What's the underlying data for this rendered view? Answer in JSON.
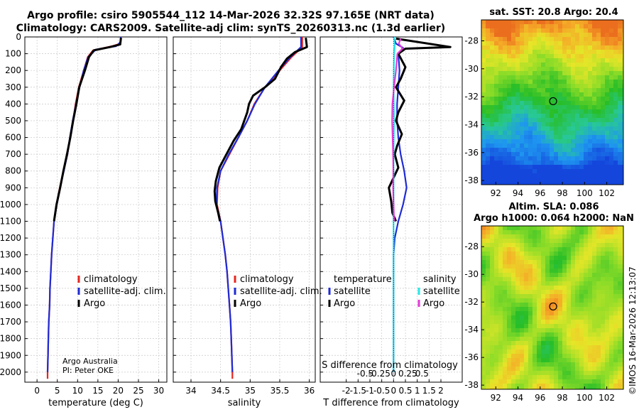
{
  "header": {
    "line1": "Argo profile: csiro 5905544_112 14-Mar-2026 32.32S 97.165E (NRT data)",
    "line2": "Climatology: CARS2009. Satellite-adj clim: synTS_20260313.nc (1.3d earlier)"
  },
  "credit": "©IMOS 16-Mar-2026 12:13:07",
  "colors": {
    "red": "#e8251f",
    "blue": "#1f2bd6",
    "black": "#000000",
    "cyan": "#28e6e6",
    "magenta": "#e33ad6"
  },
  "chart_data": [
    {
      "type": "line",
      "title": "",
      "xlabel": "temperature (deg C)",
      "ylabel": "",
      "xlim": [
        -3,
        32
      ],
      "ylim": [
        0,
        2060
      ],
      "xticks": [
        "0",
        "5",
        "10",
        "15",
        "20",
        "25",
        "30"
      ],
      "yticks": [
        "0",
        "100",
        "200",
        "300",
        "400",
        "500",
        "600",
        "700",
        "800",
        "900",
        "1000",
        "1100",
        "1200",
        "1300",
        "1400",
        "1500",
        "1600",
        "1700",
        "1800",
        "1900",
        "2000"
      ],
      "legend": [
        "climatology",
        "satellite-adj. clim.",
        "Argo"
      ],
      "annotation": [
        "Argo Australia",
        "PI: Peter OKE"
      ],
      "series": [
        {
          "name": "climatology",
          "color": "red",
          "points": [
            [
              20.7,
              0
            ],
            [
              20.5,
              40
            ],
            [
              18.5,
              55
            ],
            [
              13.8,
              80
            ],
            [
              12.5,
              120
            ],
            [
              11.5,
              200
            ],
            [
              10.3,
              300
            ],
            [
              9.5,
              400
            ],
            [
              8.9,
              500
            ],
            [
              8.2,
              600
            ],
            [
              7.5,
              700
            ],
            [
              6.5,
              800
            ],
            [
              5.6,
              900
            ],
            [
              4.8,
              1000
            ],
            [
              4.2,
              1100
            ],
            [
              3.9,
              1200
            ],
            [
              3.6,
              1300
            ],
            [
              3.4,
              1400
            ],
            [
              3.2,
              1500
            ],
            [
              3.1,
              1600
            ],
            [
              2.9,
              1700
            ],
            [
              2.8,
              1800
            ],
            [
              2.7,
              1900
            ],
            [
              2.6,
              2000
            ],
            [
              2.6,
              2040
            ]
          ]
        },
        {
          "name": "satellite-adj. clim.",
          "color": "blue",
          "points": [
            [
              20.6,
              0
            ],
            [
              20.6,
              30
            ],
            [
              19.5,
              55
            ],
            [
              14.5,
              75
            ],
            [
              12.6,
              120
            ],
            [
              11.5,
              200
            ],
            [
              10.5,
              300
            ],
            [
              9.6,
              400
            ],
            [
              8.8,
              500
            ],
            [
              8.1,
              600
            ],
            [
              7.5,
              700
            ],
            [
              6.6,
              800
            ],
            [
              5.7,
              900
            ],
            [
              4.9,
              1000
            ],
            [
              4.2,
              1100
            ],
            [
              3.9,
              1200
            ],
            [
              3.6,
              1300
            ],
            [
              3.4,
              1400
            ],
            [
              3.2,
              1500
            ],
            [
              3.1,
              1600
            ],
            [
              2.9,
              1700
            ],
            [
              2.8,
              1800
            ],
            [
              2.7,
              1900
            ],
            [
              2.6,
              2000
            ]
          ]
        },
        {
          "name": "Argo",
          "color": "black",
          "points": [
            [
              20.7,
              5
            ],
            [
              20.5,
              45
            ],
            [
              18,
              60
            ],
            [
              14,
              80
            ],
            [
              12.8,
              120
            ],
            [
              11.8,
              200
            ],
            [
              10.4,
              300
            ],
            [
              9.7,
              400
            ],
            [
              8.9,
              500
            ],
            [
              8.2,
              600
            ],
            [
              7.4,
              700
            ],
            [
              6.5,
              800
            ],
            [
              5.7,
              900
            ],
            [
              4.8,
              1000
            ],
            [
              4.2,
              1100
            ]
          ]
        }
      ]
    },
    {
      "type": "line",
      "title": "",
      "xlabel": "salinity",
      "ylabel": "",
      "xlim": [
        33.7,
        36.1
      ],
      "ylim": [
        0,
        2060
      ],
      "xticks": [
        "34",
        "34.5",
        "35",
        "35.5",
        "36"
      ],
      "legend": [
        "climatology",
        "satellite-adj. clim.",
        "Argo"
      ],
      "series": [
        {
          "name": "climatology",
          "color": "red",
          "points": [
            [
              35.88,
              0
            ],
            [
              35.88,
              60
            ],
            [
              35.7,
              120
            ],
            [
              35.5,
              200
            ],
            [
              35.25,
              300
            ],
            [
              35.07,
              400
            ],
            [
              34.95,
              500
            ],
            [
              34.8,
              600
            ],
            [
              34.65,
              700
            ],
            [
              34.5,
              800
            ],
            [
              34.45,
              900
            ],
            [
              34.44,
              1000
            ],
            [
              34.5,
              1100
            ],
            [
              34.54,
              1200
            ],
            [
              34.58,
              1300
            ],
            [
              34.61,
              1400
            ],
            [
              34.63,
              1500
            ],
            [
              34.65,
              1600
            ],
            [
              34.67,
              1700
            ],
            [
              34.68,
              1800
            ],
            [
              34.69,
              1900
            ],
            [
              34.7,
              2000
            ],
            [
              34.7,
              2040
            ]
          ]
        },
        {
          "name": "satellite-adj. clim.",
          "color": "blue",
          "points": [
            [
              35.86,
              0
            ],
            [
              35.86,
              60
            ],
            [
              35.68,
              120
            ],
            [
              35.48,
              200
            ],
            [
              35.25,
              300
            ],
            [
              35.08,
              400
            ],
            [
              34.95,
              500
            ],
            [
              34.8,
              600
            ],
            [
              34.64,
              700
            ],
            [
              34.5,
              800
            ],
            [
              34.44,
              900
            ],
            [
              34.43,
              1000
            ],
            [
              34.5,
              1100
            ],
            [
              34.54,
              1200
            ],
            [
              34.58,
              1300
            ],
            [
              34.61,
              1400
            ],
            [
              34.63,
              1500
            ],
            [
              34.65,
              1600
            ],
            [
              34.67,
              1700
            ],
            [
              34.68,
              1800
            ],
            [
              34.69,
              1900
            ],
            [
              34.7,
              2000
            ]
          ]
        },
        {
          "name": "Argo",
          "color": "black",
          "points": [
            [
              35.94,
              5
            ],
            [
              35.96,
              60
            ],
            [
              35.76,
              90
            ],
            [
              35.62,
              130
            ],
            [
              35.52,
              180
            ],
            [
              35.42,
              250
            ],
            [
              35.25,
              300
            ],
            [
              35.05,
              350
            ],
            [
              34.98,
              400
            ],
            [
              34.95,
              450
            ],
            [
              34.85,
              550
            ],
            [
              34.72,
              620
            ],
            [
              34.6,
              700
            ],
            [
              34.48,
              780
            ],
            [
              34.42,
              860
            ],
            [
              34.4,
              920
            ],
            [
              34.41,
              980
            ],
            [
              34.46,
              1050
            ],
            [
              34.49,
              1100
            ]
          ]
        }
      ]
    },
    {
      "type": "line",
      "title": "",
      "xlabel": "T difference from climatology",
      "ylabel": "",
      "xlim": [
        -3.1,
        2.9
      ],
      "ylim": [
        0,
        2060
      ],
      "xticks": [
        "-2",
        "-1.5",
        "-1",
        "-0.5",
        "0",
        "0.5",
        "1",
        "1.5",
        "2"
      ],
      "secondary_axis": {
        "label": "S difference from climatology",
        "ticks": [
          "-0.5",
          "-0.25",
          "0",
          "0.25",
          "0.5"
        ]
      },
      "legend_groups": [
        {
          "heading": "temperature",
          "items": [
            "satellite",
            "Argo"
          ]
        },
        {
          "heading": "salinity",
          "items": [
            "satellite",
            "Argo"
          ]
        }
      ],
      "series": [
        {
          "name": "temperature satellite",
          "color": "blue",
          "points": [
            [
              0,
              0
            ],
            [
              0.1,
              40
            ],
            [
              0.4,
              65
            ],
            [
              0.2,
              100
            ],
            [
              0.25,
              200
            ],
            [
              0.2,
              300
            ],
            [
              0.15,
              400
            ],
            [
              0.15,
              500
            ],
            [
              0.2,
              600
            ],
            [
              0.3,
              700
            ],
            [
              0.45,
              800
            ],
            [
              0.55,
              900
            ],
            [
              0.4,
              1000
            ],
            [
              0.2,
              1100
            ],
            [
              0.05,
              1200
            ],
            [
              0,
              1300
            ],
            [
              0,
              2000
            ]
          ]
        },
        {
          "name": "temperature Argo",
          "color": "black",
          "points": [
            [
              0.1,
              10
            ],
            [
              2.4,
              60
            ],
            [
              0.5,
              70
            ],
            [
              0.2,
              100
            ],
            [
              0.5,
              180
            ],
            [
              0.3,
              250
            ],
            [
              0.1,
              300
            ],
            [
              0.45,
              380
            ],
            [
              0.2,
              450
            ],
            [
              0.1,
              500
            ],
            [
              0.35,
              580
            ],
            [
              0.15,
              650
            ],
            [
              0.05,
              700
            ],
            [
              0.2,
              780
            ],
            [
              -0.2,
              900
            ],
            [
              -0.1,
              980
            ],
            [
              -0.05,
              1050
            ],
            [
              0.1,
              1100
            ]
          ]
        },
        {
          "name": "salinity satellite",
          "color": "cyan",
          "points": [
            [
              0.02,
              0
            ],
            [
              0.05,
              60
            ],
            [
              0.02,
              100
            ],
            [
              0.0,
              300
            ],
            [
              0.02,
              500
            ],
            [
              0,
              700
            ],
            [
              0,
              2000
            ]
          ]
        },
        {
          "name": "salinity Argo",
          "color": "magenta",
          "points": [
            [
              0.3,
              10
            ],
            [
              0.22,
              40
            ],
            [
              0.38,
              70
            ],
            [
              0.16,
              100
            ],
            [
              0.1,
              200
            ],
            [
              0.02,
              300
            ],
            [
              -0.05,
              400
            ],
            [
              -0.06,
              500
            ],
            [
              -0.04,
              600
            ],
            [
              -0.02,
              700
            ],
            [
              -0.01,
              800
            ],
            [
              -0.02,
              900
            ],
            [
              0,
              1000
            ],
            [
              0.02,
              1100
            ]
          ]
        }
      ]
    },
    {
      "type": "heatmap",
      "title": "sat. SST: 20.8 Argo: 20.4",
      "xticks": [
        "92",
        "94",
        "96",
        "98",
        "100",
        "102"
      ],
      "yticks": [
        "-28",
        "-30",
        "-32",
        "-34",
        "-36",
        "-38"
      ],
      "xlim": [
        90.7,
        103.5
      ],
      "ylim": [
        -38.3,
        -26.5
      ],
      "marker": [
        97.165,
        -32.32
      ]
    },
    {
      "type": "heatmap",
      "title": "Altim. SLA: 0.086",
      "subtitle": "Argo h1000: 0.064 h2000: NaN",
      "xticks": [
        "92",
        "94",
        "96",
        "98",
        "100",
        "102"
      ],
      "yticks": [
        "-28",
        "-30",
        "-32",
        "-34",
        "-36",
        "-38"
      ],
      "xlim": [
        90.7,
        103.5
      ],
      "ylim": [
        -38.3,
        -26.5
      ],
      "marker": [
        97.165,
        -32.32
      ]
    }
  ]
}
